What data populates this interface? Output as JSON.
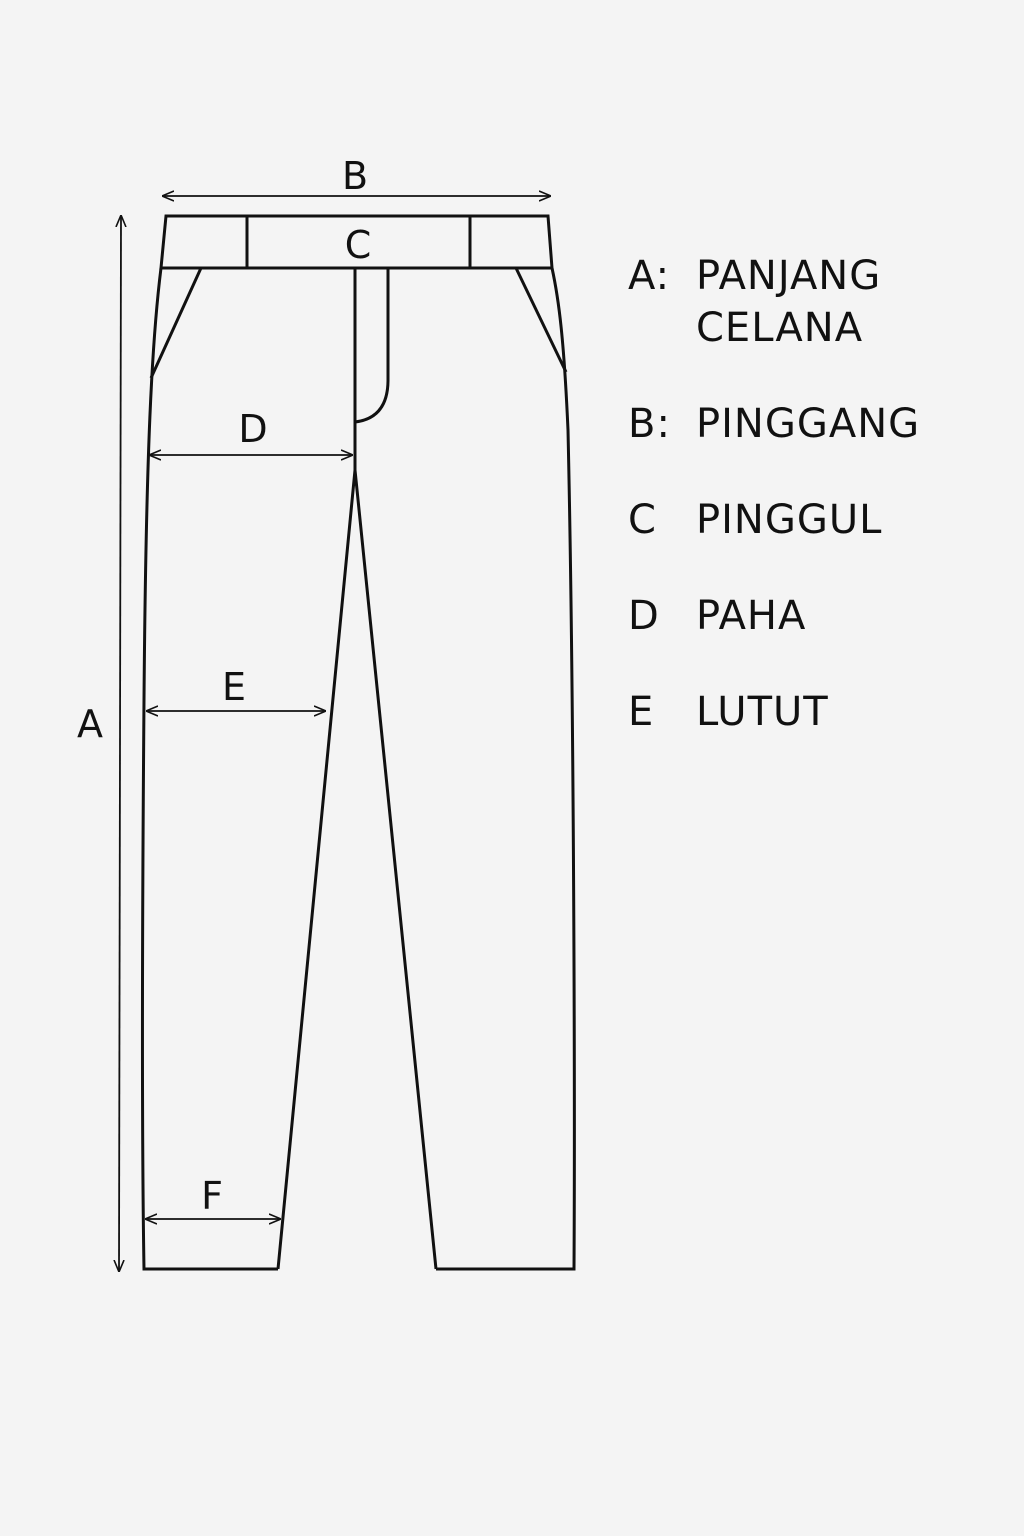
{
  "diagram": {
    "labels": {
      "a": "A",
      "b": "B",
      "c": "C",
      "d": "D",
      "e": "E",
      "f": "F"
    },
    "stroke_color": "#111111",
    "background_color": "#f4f4f4"
  },
  "legend": {
    "items": [
      {
        "key": "A:",
        "text": "PANJANG CELANA"
      },
      {
        "key": "B:",
        "text": "PINGGANG"
      },
      {
        "key": "C",
        "text": "PINGGUL"
      },
      {
        "key": "D",
        "text": "PAHA"
      },
      {
        "key": "E",
        "text": "LUTUT"
      }
    ]
  }
}
